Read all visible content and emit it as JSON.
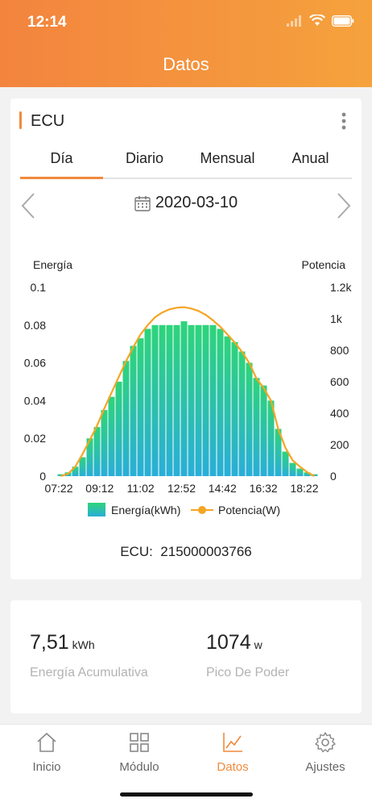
{
  "status_bar": {
    "time": "12:14"
  },
  "header": {
    "title": "Datos"
  },
  "card": {
    "title": "ECU",
    "tabs": [
      {
        "label": "Día",
        "active": true
      },
      {
        "label": "Diario",
        "active": false
      },
      {
        "label": "Mensual",
        "active": false
      },
      {
        "label": "Anual",
        "active": false
      }
    ],
    "date": "2020-03-10",
    "ecu_label": "ECU:",
    "ecu_id": "215000003766"
  },
  "chart_data": {
    "type": "bar",
    "left_axis_label": "Energía",
    "right_axis_label": "Potencia",
    "left_ticks": [
      "0",
      "0.02",
      "0.04",
      "0.06",
      "0.08",
      "0.1"
    ],
    "right_ticks": [
      "0",
      "200",
      "400",
      "600",
      "800",
      "1k",
      "1.2k"
    ],
    "x_tick_labels": [
      "07:22",
      "09:12",
      "11:02",
      "12:52",
      "14:42",
      "16:32",
      "18:22"
    ],
    "ylim_left": [
      0,
      0.1
    ],
    "ylim_right": [
      0,
      1200
    ],
    "series": [
      {
        "name": "Energía(kWh)",
        "kind": "bar",
        "color": "#2ed47a",
        "color_bottom": "#2aaed8",
        "x": [
          "07:22",
          "07:42",
          "08:02",
          "08:22",
          "08:42",
          "09:02",
          "09:22",
          "09:42",
          "10:02",
          "10:22",
          "10:42",
          "11:02",
          "11:22",
          "11:42",
          "12:02",
          "12:22",
          "12:42",
          "13:02",
          "13:22",
          "13:42",
          "14:02",
          "14:22",
          "14:42",
          "15:02",
          "15:22",
          "15:42",
          "16:02",
          "16:22",
          "16:42",
          "17:02",
          "17:22",
          "17:42",
          "18:02",
          "18:22",
          "18:42",
          "19:02"
        ],
        "values": [
          0.001,
          0.002,
          0.005,
          0.01,
          0.02,
          0.026,
          0.035,
          0.042,
          0.05,
          0.061,
          0.069,
          0.073,
          0.078,
          0.08,
          0.08,
          0.08,
          0.08,
          0.082,
          0.08,
          0.08,
          0.08,
          0.08,
          0.078,
          0.074,
          0.071,
          0.066,
          0.06,
          0.052,
          0.048,
          0.04,
          0.025,
          0.013,
          0.007,
          0.004,
          0.002,
          0.001
        ]
      },
      {
        "name": "Potencia(W)",
        "kind": "line",
        "color": "#f5a524",
        "x": [
          "07:22",
          "07:42",
          "08:02",
          "08:22",
          "08:42",
          "09:02",
          "09:22",
          "09:42",
          "10:02",
          "10:22",
          "10:42",
          "11:02",
          "11:22",
          "11:42",
          "12:02",
          "12:22",
          "12:42",
          "13:02",
          "13:22",
          "13:42",
          "14:02",
          "14:22",
          "14:42",
          "15:02",
          "15:22",
          "15:42",
          "16:02",
          "16:22",
          "16:42",
          "17:02",
          "17:22",
          "17:42",
          "18:02",
          "18:22",
          "18:42",
          "19:02"
        ],
        "values": [
          0,
          15,
          60,
          140,
          230,
          320,
          430,
          530,
          630,
          730,
          820,
          900,
          960,
          1010,
          1040,
          1060,
          1070,
          1074,
          1065,
          1050,
          1025,
          990,
          950,
          900,
          850,
          790,
          720,
          620,
          560,
          480,
          300,
          180,
          100,
          60,
          25,
          0
        ]
      }
    ]
  },
  "summary": {
    "energy_value": "7,51",
    "energy_unit": "kWh",
    "energy_label": "Energía Acumulativa",
    "peak_value": "1074",
    "peak_unit": "w",
    "peak_label": "Pico De Poder"
  },
  "nav": {
    "items": [
      {
        "label": "Inicio",
        "icon": "home-icon",
        "active": false
      },
      {
        "label": "Módulo",
        "icon": "grid-icon",
        "active": false
      },
      {
        "label": "Datos",
        "icon": "chart-icon",
        "active": true
      },
      {
        "label": "Ajustes",
        "icon": "gear-icon",
        "active": false
      }
    ]
  },
  "colors": {
    "accent": "#f08a3c",
    "header_start": "#f3843e",
    "header_end": "#f5a23d"
  }
}
